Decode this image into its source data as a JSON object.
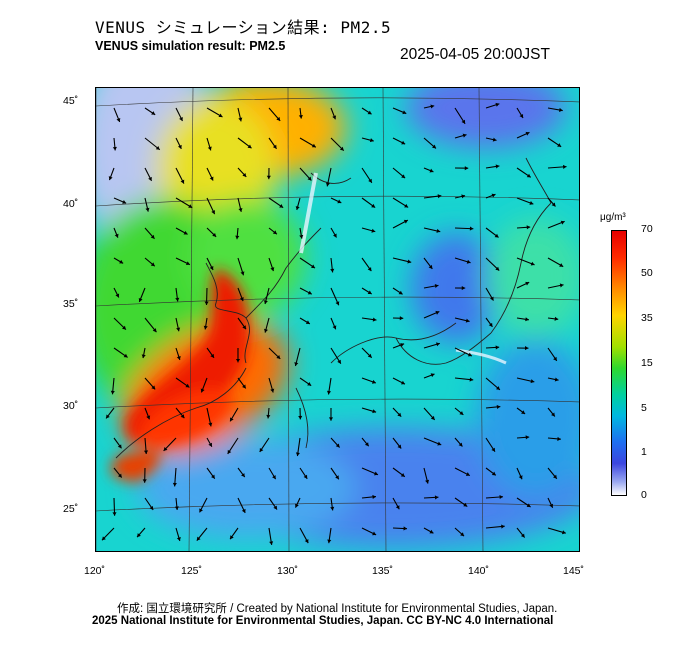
{
  "header": {
    "title_jp": "VENUS シミュレーション結果: PM2.5",
    "title_en": "VENUS simulation result: PM2.5",
    "timestamp": "2025-04-05 20:00JST"
  },
  "map": {
    "latitude_labels": [
      "45˚",
      "40˚",
      "35˚",
      "30˚",
      "25˚"
    ],
    "longitude_labels": [
      "120˚",
      "125˚",
      "130˚",
      "135˚",
      "140˚",
      "145˚"
    ],
    "layers": [
      "pm25-concentration",
      "wind-vectors",
      "coastlines",
      "graticule"
    ]
  },
  "colorbar": {
    "unit": "μg/m³",
    "ticks": [
      "70",
      "50",
      "35",
      "15",
      "5",
      "1",
      "0"
    ]
  },
  "footer": {
    "credit_jp": "作成: 国立環境研究所 / Created by National Institute for Environmental Studies, Japan.",
    "credit_en": "2025 National Institute for Environmental Studies, Japan. CC BY-NC 4.0 International"
  },
  "colors": {
    "high": "#e60000",
    "moderate_high": "#ff8c00",
    "moderate": "#2ed82e",
    "low": "#00c8e6",
    "very_low": "#3c6ef0",
    "clean": "#ffffff"
  }
}
